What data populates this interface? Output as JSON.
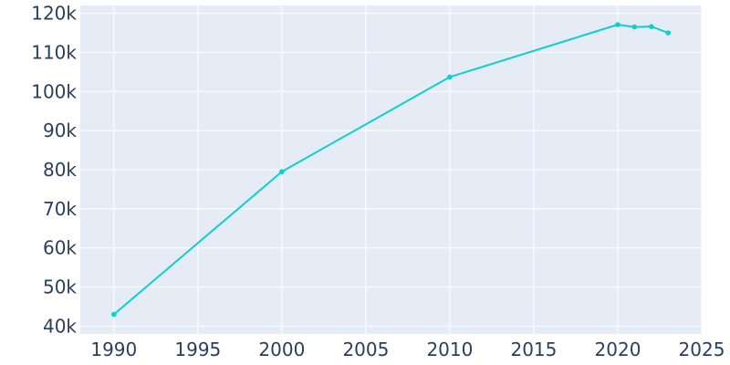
{
  "chart_data": {
    "type": "line",
    "xlim": [
      1988,
      2025
    ],
    "ylim": [
      38000,
      122000
    ],
    "x_ticks": [
      1990,
      1995,
      2000,
      2005,
      2010,
      2015,
      2020,
      2025
    ],
    "x_tick_labels": [
      "1990",
      "1995",
      "2000",
      "2005",
      "2010",
      "2015",
      "2020",
      "2025"
    ],
    "y_ticks": [
      40000,
      50000,
      60000,
      70000,
      80000,
      90000,
      100000,
      110000,
      120000
    ],
    "y_tick_labels": [
      "40k",
      "50k",
      "60k",
      "70k",
      "80k",
      "90k",
      "100k",
      "110k",
      "120k"
    ],
    "grid": true,
    "series": [
      {
        "x": [
          1990,
          2000,
          2010,
          2020,
          2021,
          2022,
          2023
        ],
        "y": [
          43000,
          79500,
          103700,
          117100,
          116500,
          116600,
          115000
        ]
      }
    ],
    "colors": {
      "plot_background": "#e5ecf6",
      "gridline": "#ffffff",
      "line": "#0ecfcf",
      "tick_text": "#2a3f5f"
    }
  }
}
